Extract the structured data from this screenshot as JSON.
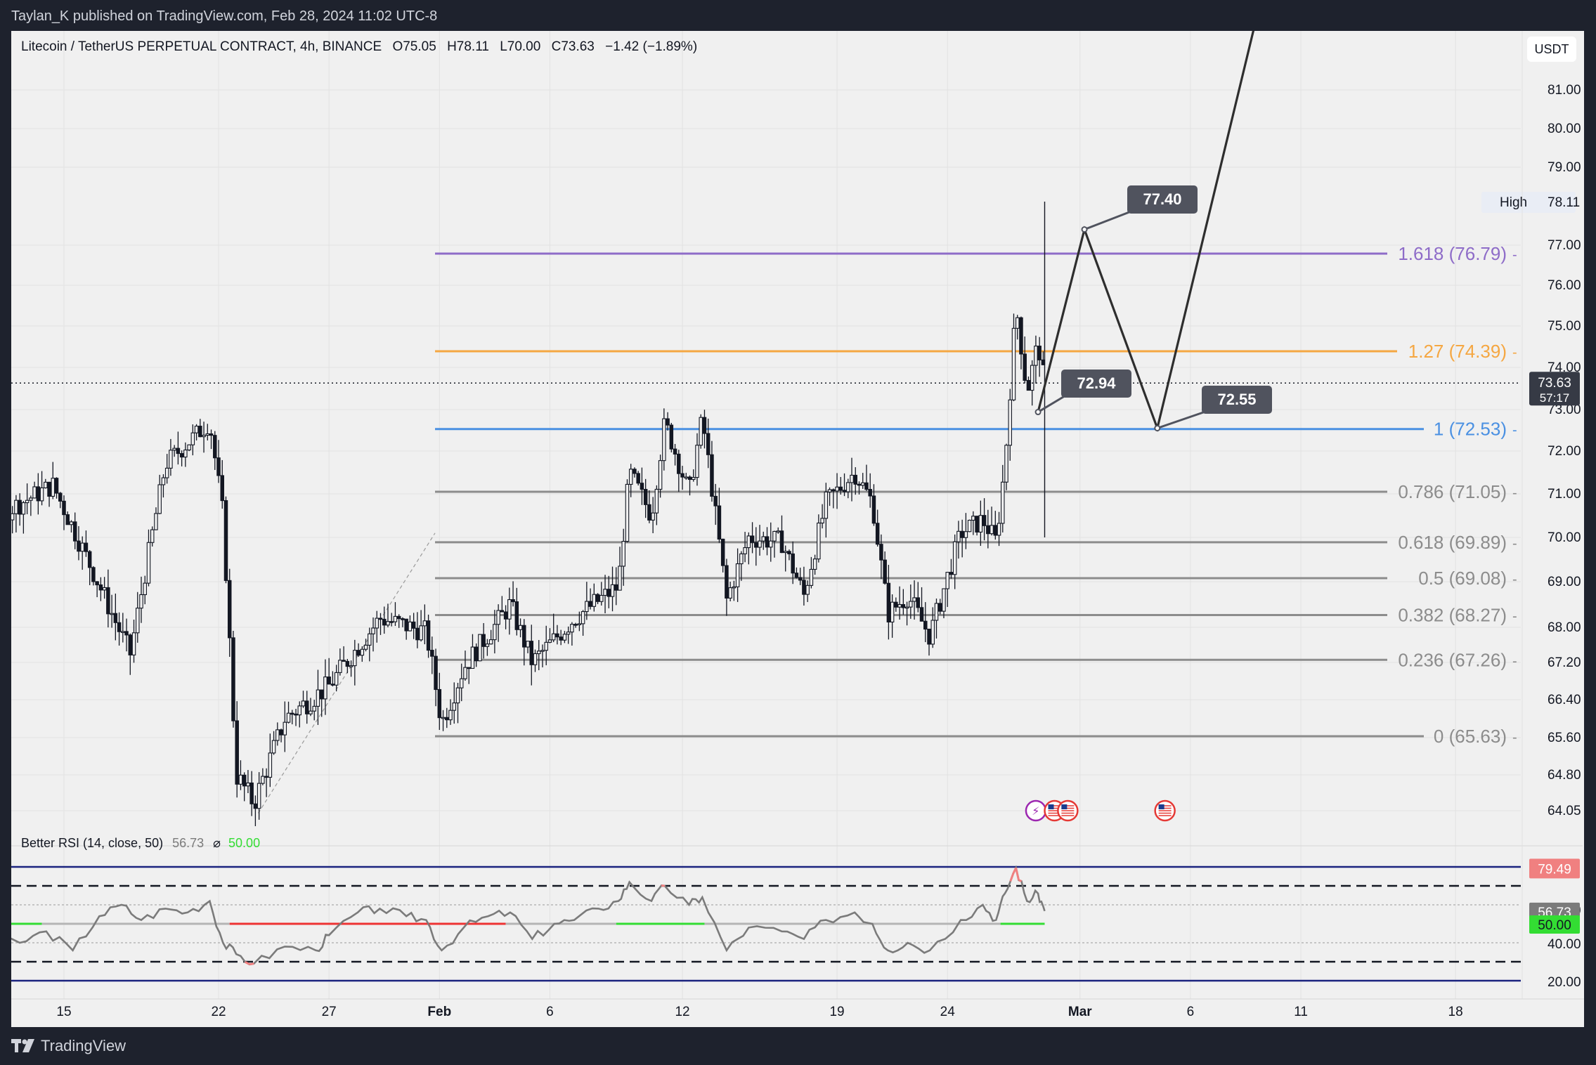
{
  "publisher": "Taylan_K published on TradingView.com, Feb 28, 2024 11:02 UTC-8",
  "brand": "TradingView",
  "currency": "USDT",
  "legend": {
    "symbol": "Litecoin / TetherUS PERPETUAL CONTRACT, 4h, BINANCE",
    "open": "O75.05",
    "high": "H78.11",
    "low": "L70.00",
    "close": "C73.63",
    "change": "−1.42 (−1.89%)"
  },
  "rsi_legend": {
    "name": "Better RSI (14, close, 50)",
    "value": "56.73",
    "symbol": "⌀",
    "ma": "50.00"
  },
  "colors": {
    "bg": "#f0f0f0",
    "candle": "#131722",
    "fib_neutral": "#8c8c8c",
    "fib_one": "#4a90e2",
    "fib_1272": "#f5a742",
    "fib_1618": "#8e6cc8",
    "rsi_line": "#7b7b7b",
    "rsi_hot": "#f08080",
    "rsi_green": "#33dd33",
    "rsi_red": "#ee3333",
    "rsi_band": "#1a237e"
  },
  "chart_data": {
    "type": "candlestick",
    "timeframe": "4h",
    "y_ticks": [
      "81.00",
      "80.00",
      "79.00",
      "77.00",
      "76.00",
      "75.00",
      "74.00",
      "73.00",
      "72.00",
      "71.00",
      "70.00",
      "69.00",
      "68.00",
      "67.20",
      "66.40",
      "65.60",
      "64.80",
      "64.05"
    ],
    "x_ticks": [
      "15",
      "22",
      "27",
      "Feb",
      "6",
      "12",
      "19",
      "24",
      "Mar",
      "6",
      "11",
      "18"
    ],
    "x_tick_days": [
      15,
      22,
      27,
      32,
      37,
      43,
      50,
      55,
      61,
      66,
      71,
      78
    ],
    "day_axis_note_days_from_jan_1": true,
    "last_price": {
      "value": 73.63,
      "label": "73.63",
      "countdown": "57:17"
    },
    "high_marker": {
      "label": "High",
      "value": "78.11"
    },
    "fib_levels": [
      {
        "ratio": "0",
        "value": 65.63,
        "label": "0 (65.63)",
        "color": "fib_neutral"
      },
      {
        "ratio": "0.236",
        "value": 67.26,
        "label": "0.236 (67.26)",
        "color": "fib_neutral"
      },
      {
        "ratio": "0.382",
        "value": 68.27,
        "label": "0.382 (68.27)",
        "color": "fib_neutral"
      },
      {
        "ratio": "0.5",
        "value": 69.08,
        "label": "0.5 (69.08)",
        "color": "fib_neutral"
      },
      {
        "ratio": "0.618",
        "value": 69.89,
        "label": "0.618 (69.89)",
        "color": "fib_neutral"
      },
      {
        "ratio": "0.786",
        "value": 71.05,
        "label": "0.786 (71.05)",
        "color": "fib_neutral"
      },
      {
        "ratio": "1",
        "value": 72.53,
        "label": "1 (72.53)",
        "color": "fib_one"
      },
      {
        "ratio": "1.27",
        "value": 74.39,
        "label": "1.27 (74.39)",
        "color": "fib_1272"
      },
      {
        "ratio": "1.618",
        "value": 76.79,
        "label": "1.618 (76.79)",
        "color": "fib_1618"
      }
    ],
    "projection": [
      {
        "day": 59.1,
        "value": 72.94
      },
      {
        "day": 61.2,
        "value": 77.4
      },
      {
        "day": 64.5,
        "value": 72.55
      },
      {
        "day": 69.0,
        "value": 83.0
      }
    ],
    "callouts": [
      "72.94",
      "77.40",
      "72.55"
    ],
    "swing_points": [
      {
        "day": 8.0,
        "value": 72.9
      },
      {
        "day": 12.0,
        "value": 70.5
      },
      {
        "day": 14.5,
        "value": 71.2
      },
      {
        "day": 18.0,
        "value": 67.4
      },
      {
        "day": 19.6,
        "value": 71.7
      },
      {
        "day": 21.6,
        "value": 72.7
      },
      {
        "day": 22.2,
        "value": 70.5
      },
      {
        "day": 22.8,
        "value": 64.8
      },
      {
        "day": 23.6,
        "value": 64.2
      },
      {
        "day": 25.0,
        "value": 66.0
      },
      {
        "day": 27.0,
        "value": 66.7
      },
      {
        "day": 29.3,
        "value": 68.2
      },
      {
        "day": 31.4,
        "value": 67.9
      },
      {
        "day": 32.1,
        "value": 65.9
      },
      {
        "day": 33.1,
        "value": 67.1
      },
      {
        "day": 35.2,
        "value": 68.5
      },
      {
        "day": 36.2,
        "value": 67.2
      },
      {
        "day": 38.1,
        "value": 68.2
      },
      {
        "day": 40.1,
        "value": 68.9
      },
      {
        "day": 40.6,
        "value": 71.5
      },
      {
        "day": 41.6,
        "value": 70.5
      },
      {
        "day": 42.2,
        "value": 72.7
      },
      {
        "day": 43.3,
        "value": 71.0
      },
      {
        "day": 43.9,
        "value": 72.8
      },
      {
        "day": 45.0,
        "value": 68.6
      },
      {
        "day": 46.0,
        "value": 70.0
      },
      {
        "day": 47.5,
        "value": 69.9
      },
      {
        "day": 48.5,
        "value": 68.7
      },
      {
        "day": 49.5,
        "value": 70.8
      },
      {
        "day": 50.8,
        "value": 71.5
      },
      {
        "day": 51.6,
        "value": 70.8
      },
      {
        "day": 52.3,
        "value": 68.3
      },
      {
        "day": 53.2,
        "value": 68.7
      },
      {
        "day": 54.2,
        "value": 67.8
      },
      {
        "day": 55.6,
        "value": 70.1
      },
      {
        "day": 56.6,
        "value": 70.4
      },
      {
        "day": 57.2,
        "value": 69.9
      },
      {
        "day": 57.6,
        "value": 71.7
      },
      {
        "day": 58.1,
        "value": 75.5
      },
      {
        "day": 58.6,
        "value": 73.4
      },
      {
        "day": 59.1,
        "value": 74.6
      },
      {
        "day": 59.4,
        "value": 73.6
      }
    ],
    "rsi": {
      "value": 56.73,
      "ma": 50.0,
      "max_label": "79.49",
      "y_ticks": [
        "60.00",
        "40.00",
        "20.00"
      ],
      "bands": [
        80,
        70,
        30,
        20
      ],
      "points": [
        {
          "day": 8.0,
          "value": 54
        },
        {
          "day": 9.0,
          "value": 46
        },
        {
          "day": 10.2,
          "value": 42
        },
        {
          "day": 11.5,
          "value": 44
        },
        {
          "day": 13.0,
          "value": 40
        },
        {
          "day": 14.2,
          "value": 46
        },
        {
          "day": 15.4,
          "value": 36
        },
        {
          "day": 16.6,
          "value": 54
        },
        {
          "day": 17.6,
          "value": 60
        },
        {
          "day": 18.5,
          "value": 52
        },
        {
          "day": 19.6,
          "value": 58
        },
        {
          "day": 20.6,
          "value": 56
        },
        {
          "day": 21.6,
          "value": 62
        },
        {
          "day": 22.2,
          "value": 40
        },
        {
          "day": 22.8,
          "value": 34
        },
        {
          "day": 23.6,
          "value": 29
        },
        {
          "day": 25.0,
          "value": 38
        },
        {
          "day": 26.4,
          "value": 36
        },
        {
          "day": 27.0,
          "value": 44
        },
        {
          "day": 28.3,
          "value": 56
        },
        {
          "day": 29.3,
          "value": 58
        },
        {
          "day": 30.5,
          "value": 54
        },
        {
          "day": 31.4,
          "value": 52
        },
        {
          "day": 32.1,
          "value": 36
        },
        {
          "day": 33.1,
          "value": 48
        },
        {
          "day": 34.2,
          "value": 54
        },
        {
          "day": 35.2,
          "value": 56
        },
        {
          "day": 36.2,
          "value": 42
        },
        {
          "day": 37.2,
          "value": 50
        },
        {
          "day": 38.1,
          "value": 52
        },
        {
          "day": 39.2,
          "value": 58
        },
        {
          "day": 40.1,
          "value": 62
        },
        {
          "day": 40.6,
          "value": 72
        },
        {
          "day": 41.6,
          "value": 62
        },
        {
          "day": 42.2,
          "value": 70
        },
        {
          "day": 43.3,
          "value": 60
        },
        {
          "day": 43.9,
          "value": 64
        },
        {
          "day": 45.0,
          "value": 36
        },
        {
          "day": 46.0,
          "value": 48
        },
        {
          "day": 47.5,
          "value": 46
        },
        {
          "day": 48.5,
          "value": 42
        },
        {
          "day": 49.5,
          "value": 52
        },
        {
          "day": 50.8,
          "value": 56
        },
        {
          "day": 51.6,
          "value": 50
        },
        {
          "day": 52.3,
          "value": 36
        },
        {
          "day": 53.2,
          "value": 40
        },
        {
          "day": 54.2,
          "value": 36
        },
        {
          "day": 55.6,
          "value": 52
        },
        {
          "day": 56.6,
          "value": 60
        },
        {
          "day": 57.2,
          "value": 52
        },
        {
          "day": 57.6,
          "value": 66
        },
        {
          "day": 58.1,
          "value": 79.49
        },
        {
          "day": 58.6,
          "value": 62
        },
        {
          "day": 59.1,
          "value": 66
        },
        {
          "day": 59.4,
          "value": 56.73
        }
      ],
      "ma_segments": [
        {
          "from": 8.0,
          "to": 14.0,
          "color": "rsi_green"
        },
        {
          "from": 14.0,
          "to": 22.5,
          "color": "rsi_line"
        },
        {
          "from": 22.5,
          "to": 35.0,
          "color": "rsi_red"
        },
        {
          "from": 35.0,
          "to": 40.0,
          "color": "rsi_line"
        },
        {
          "from": 40.0,
          "to": 44.0,
          "color": "rsi_green"
        },
        {
          "from": 44.0,
          "to": 57.4,
          "color": "rsi_line"
        },
        {
          "from": 57.4,
          "to": 59.4,
          "color": "rsi_green"
        }
      ]
    },
    "event_icons": [
      {
        "day": 59.0,
        "kind": "lightning"
      },
      {
        "day": 59.4,
        "kind": "us-flag"
      },
      {
        "day": 60.0,
        "kind": "us-flag"
      },
      {
        "day": 64.4,
        "kind": "us-flag"
      }
    ]
  }
}
